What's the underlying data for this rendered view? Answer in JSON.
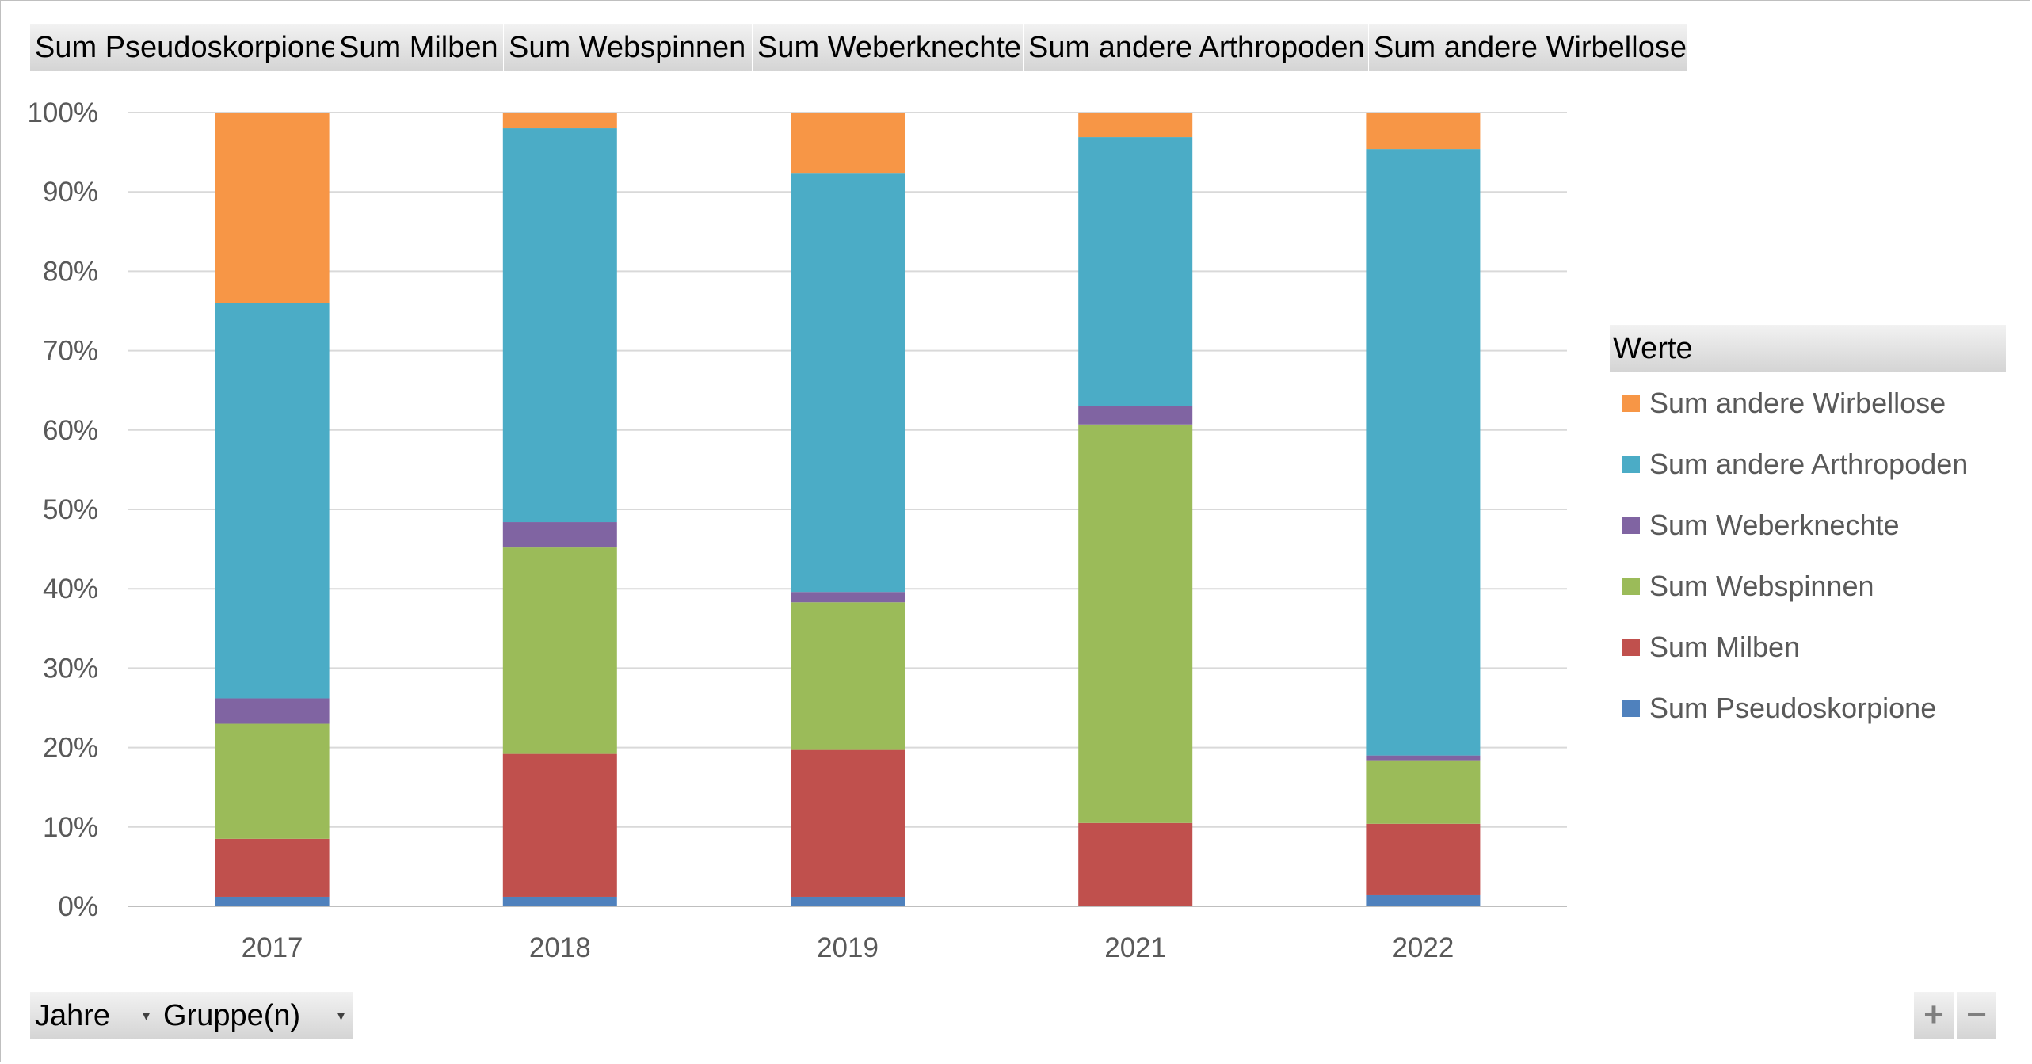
{
  "fields": {
    "value_buttons": [
      "Sum Pseudoskorpione",
      "Sum Milben",
      "Sum Webspinnen",
      "Sum Weberknechte",
      "Sum andere Arthropoden",
      "Sum andere Wirbellose"
    ],
    "axis_buttons": [
      "Jahre",
      "Gruppe(n)"
    ]
  },
  "legend": {
    "title": "Werte",
    "items": [
      {
        "label": "Sum andere Wirbellose",
        "color": "#F79646"
      },
      {
        "label": "Sum andere Arthropoden",
        "color": "#4BACC6"
      },
      {
        "label": "Sum Weberknechte",
        "color": "#8064A2"
      },
      {
        "label": "Sum Webspinnen",
        "color": "#9BBB59"
      },
      {
        "label": "Sum Milben",
        "color": "#C0504D"
      },
      {
        "label": "Sum Pseudoskorpione",
        "color": "#4F81BD"
      }
    ]
  },
  "zoom": {
    "plus": "+",
    "minus": "−"
  },
  "chart_data": {
    "type": "bar",
    "stacked": true,
    "percent_stacked": true,
    "categories": [
      "2017",
      "2018",
      "2019",
      "2021",
      "2022"
    ],
    "y_ticks": [
      "0%",
      "10%",
      "20%",
      "30%",
      "40%",
      "50%",
      "60%",
      "70%",
      "80%",
      "90%",
      "100%"
    ],
    "ylim": [
      0,
      100
    ],
    "grid": true,
    "legend_position": "right",
    "series": [
      {
        "name": "Sum Pseudoskorpione",
        "color": "#4F81BD",
        "values": [
          1.2,
          1.2,
          1.2,
          0,
          1.4
        ]
      },
      {
        "name": "Sum Milben",
        "color": "#C0504D",
        "values": [
          7.3,
          18.0,
          18.5,
          10.5,
          9.0
        ]
      },
      {
        "name": "Sum Webspinnen",
        "color": "#9BBB59",
        "values": [
          14.5,
          26.0,
          18.6,
          50.2,
          8.0
        ]
      },
      {
        "name": "Sum Weberknechte",
        "color": "#8064A2",
        "values": [
          3.2,
          3.2,
          1.3,
          2.3,
          0.6
        ]
      },
      {
        "name": "Sum andere Arthropoden",
        "color": "#4BACC6",
        "values": [
          49.8,
          49.6,
          52.8,
          33.9,
          76.4
        ]
      },
      {
        "name": "Sum andere Wirbellose",
        "color": "#F79646",
        "values": [
          24.0,
          2.0,
          7.6,
          3.1,
          4.6
        ]
      }
    ]
  }
}
